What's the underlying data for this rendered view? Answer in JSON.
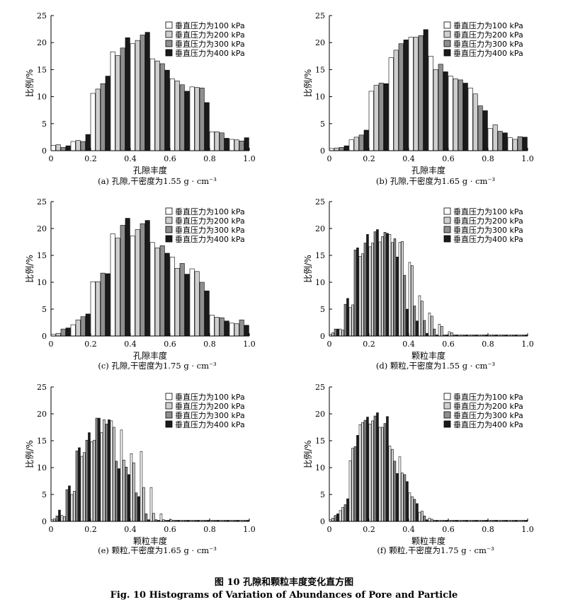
{
  "figure": {
    "title_zh": "图 10   孔隙和颗粒丰度变化直方图",
    "title_en": "Fig. 10   Histograms of Variation of Abundances of Pore and Particle"
  },
  "styles": {
    "series_colors": [
      "#ffffff",
      "#cfcfcf",
      "#8f8f8f",
      "#1a1a1a"
    ]
  },
  "chart_data": [
    {
      "type": "bar",
      "title": "",
      "caption": "(a)   孔隙,干密度为1.55 g · cm⁻³",
      "xlabel": "孔隙丰度",
      "ylabel": "比例/%",
      "xlim": [
        0,
        1
      ],
      "ylim": [
        0,
        25
      ],
      "xticks": [
        "0",
        "0.2",
        "0.4",
        "0.6",
        "0.8",
        "1.0"
      ],
      "yticks": [
        "0",
        "5",
        "10",
        "15",
        "20",
        "25"
      ],
      "legend_position": "top-right",
      "categories": [
        0.05,
        0.15,
        0.25,
        0.35,
        0.45,
        0.55,
        0.65,
        0.75,
        0.85,
        0.95
      ],
      "series": [
        {
          "name": "垂直压力为100 kPa",
          "values": [
            1.0,
            1.7,
            10.6,
            18.3,
            19.8,
            17.0,
            13.3,
            11.8,
            3.5,
            2.1
          ]
        },
        {
          "name": "垂直压力为200 kPa",
          "values": [
            1.1,
            1.9,
            11.4,
            17.6,
            20.4,
            16.6,
            12.9,
            11.7,
            3.5,
            2.0
          ]
        },
        {
          "name": "垂直压力为300 kPa",
          "values": [
            0.6,
            1.7,
            12.4,
            19.0,
            21.4,
            16.1,
            12.2,
            11.6,
            3.3,
            1.8
          ]
        },
        {
          "name": "垂直压力为400 kPa",
          "values": [
            0.9,
            3.0,
            13.8,
            20.9,
            21.9,
            14.9,
            11.0,
            8.9,
            2.3,
            2.4
          ]
        }
      ]
    },
    {
      "type": "bar",
      "title": "",
      "caption": "(b)   孔隙,干密度为1.65 g · cm⁻³",
      "xlabel": "孔隙丰度",
      "ylabel": "比例/%",
      "xlim": [
        0,
        1
      ],
      "ylim": [
        0,
        25
      ],
      "xticks": [
        "0",
        "0.2",
        "0.4",
        "0.6",
        "0.8",
        "1.0"
      ],
      "yticks": [
        "0",
        "5",
        "10",
        "15",
        "20",
        "25"
      ],
      "legend_position": "top-right",
      "categories": [
        0.05,
        0.15,
        0.25,
        0.35,
        0.45,
        0.55,
        0.65,
        0.75,
        0.85,
        0.95
      ],
      "series": [
        {
          "name": "垂直压力为100 kPa",
          "values": [
            0.4,
            2.0,
            11.0,
            17.2,
            21.0,
            17.5,
            13.8,
            11.6,
            4.1,
            2.4
          ]
        },
        {
          "name": "垂直压力为200 kPa",
          "values": [
            0.5,
            2.5,
            12.1,
            18.6,
            21.0,
            15.0,
            13.3,
            10.5,
            4.8,
            2.1
          ]
        },
        {
          "name": "垂直压力为300 kPa",
          "values": [
            0.6,
            2.9,
            12.5,
            19.8,
            21.3,
            16.0,
            13.1,
            8.3,
            3.6,
            2.6
          ]
        },
        {
          "name": "垂直压力为400 kPa",
          "values": [
            0.9,
            3.8,
            12.4,
            20.5,
            22.4,
            14.6,
            12.5,
            7.4,
            3.3,
            2.5
          ]
        }
      ]
    },
    {
      "type": "bar",
      "title": "",
      "caption": "(c)   孔隙,干密度为1.75 g · cm⁻³",
      "xlabel": "孔隙丰度",
      "ylabel": "比例/%",
      "xlim": [
        0,
        1
      ],
      "ylim": [
        0,
        25
      ],
      "xticks": [
        "0",
        "0.2",
        "0.4",
        "0.6",
        "0.8",
        "1.0"
      ],
      "yticks": [
        "0",
        "5",
        "10",
        "15",
        "20",
        "25"
      ],
      "legend_position": "top-right",
      "categories": [
        0.05,
        0.15,
        0.25,
        0.35,
        0.45,
        0.55,
        0.65,
        0.75,
        0.85,
        0.95
      ],
      "series": [
        {
          "name": "垂直压力为100 kPa",
          "values": [
            0.3,
            2.1,
            10.1,
            19.0,
            18.6,
            17.4,
            14.7,
            12.5,
            3.9,
            2.4
          ]
        },
        {
          "name": "垂直压力为200 kPa",
          "values": [
            0.5,
            3.0,
            10.1,
            18.2,
            19.8,
            16.4,
            12.6,
            12.0,
            3.5,
            2.3
          ]
        },
        {
          "name": "垂直压力为300 kPa",
          "values": [
            1.3,
            3.6,
            11.7,
            20.6,
            20.9,
            16.8,
            13.5,
            10.0,
            3.4,
            3.0
          ]
        },
        {
          "name": "垂直压力为400 kPa",
          "values": [
            1.5,
            4.1,
            11.6,
            21.9,
            21.5,
            15.4,
            11.5,
            8.4,
            2.8,
            2.0
          ]
        }
      ]
    },
    {
      "type": "bar",
      "title": "",
      "caption": "(d)   颗粒,干密度为1.55 g · cm⁻³",
      "xlabel": "颗粒丰度",
      "ylabel": "比例/%",
      "xlim": [
        0,
        1
      ],
      "ylim": [
        0,
        25
      ],
      "xticks": [
        "0",
        "0.2",
        "0.4",
        "0.6",
        "0.8",
        "1.0"
      ],
      "yticks": [
        "0",
        "5",
        "10",
        "15",
        "20",
        "25"
      ],
      "legend_position": "top-right",
      "categories": [
        0.025,
        0.075,
        0.125,
        0.175,
        0.225,
        0.275,
        0.325,
        0.375,
        0.425,
        0.475,
        0.525,
        0.575,
        0.625,
        0.675,
        0.725,
        0.775,
        0.825,
        0.875,
        0.925,
        0.975
      ],
      "series": [
        {
          "name": "垂直压力为100 kPa",
          "values": [
            0.3,
            1.3,
            5.3,
            14.8,
            16.6,
            17.5,
            18.9,
            17.4,
            13.7,
            7.5,
            4.3,
            2.2,
            0.8,
            0.2,
            0.2,
            0.2,
            0.2,
            0.2,
            0.2,
            0.2
          ]
        },
        {
          "name": "垂直压力为200 kPa",
          "values": [
            0.6,
            1.1,
            5.8,
            15.3,
            17.3,
            18.5,
            17.4,
            17.6,
            13.1,
            6.5,
            3.7,
            1.8,
            0.6,
            0.2,
            0.2,
            0.2,
            0.2,
            0.2,
            0.2,
            0.2
          ]
        },
        {
          "name": "垂直压力为300 kPa",
          "values": [
            1.3,
            5.9,
            16.0,
            17.3,
            19.4,
            19.3,
            18.1,
            11.3,
            5.6,
            2.9,
            1.3,
            0.2,
            0.2,
            0.2,
            0.2,
            0.2,
            0.2,
            0.2,
            0.2,
            0.2
          ]
        },
        {
          "name": "垂直压力为400 kPa",
          "values": [
            1.3,
            7.0,
            16.4,
            18.9,
            19.8,
            19.1,
            14.7,
            5.0,
            2.8,
            0.5,
            0.2,
            0.2,
            0.2,
            0.2,
            0.2,
            0.2,
            0.2,
            0.2,
            0.2,
            0.2
          ]
        }
      ]
    },
    {
      "type": "bar",
      "title": "",
      "caption": "(e)   颗粒,干密度为1.65 g · cm⁻³",
      "xlabel": "颗粒丰度",
      "ylabel": "比例/%",
      "xlim": [
        0,
        1
      ],
      "ylim": [
        0,
        25
      ],
      "xticks": [
        "0",
        "0.2",
        "0.4",
        "0.6",
        "0.8",
        "1.0"
      ],
      "yticks": [
        "0",
        "5",
        "10",
        "15",
        "20",
        "25"
      ],
      "legend_position": "top-right",
      "categories": [
        0.025,
        0.075,
        0.125,
        0.175,
        0.225,
        0.275,
        0.325,
        0.375,
        0.425,
        0.475,
        0.525,
        0.575,
        0.625,
        0.675,
        0.725,
        0.775,
        0.825,
        0.875,
        0.925,
        0.975
      ],
      "series": [
        {
          "name": "垂直压力为100 kPa",
          "values": [
            0.3,
            1.1,
            5.0,
            12.1,
            14.8,
            16.5,
            18.7,
            17.0,
            12.6,
            13.0,
            6.3,
            1.4,
            0.3,
            0.2,
            0.2,
            0.2,
            0.2,
            0.2,
            0.2,
            0.2
          ]
        },
        {
          "name": "垂直压力为200 kPa",
          "values": [
            0.5,
            0.9,
            5.6,
            12.8,
            15.1,
            18.9,
            17.5,
            11.4,
            10.9,
            6.3,
            1.5,
            0.3,
            0.2,
            0.2,
            0.2,
            0.2,
            0.2,
            0.2,
            0.2,
            0.2
          ]
        },
        {
          "name": "垂直压力为300 kPa",
          "values": [
            1.0,
            5.9,
            13.1,
            15.1,
            19.2,
            18.1,
            11.2,
            10.1,
            5.3,
            1.4,
            0.3,
            0.2,
            0.2,
            0.2,
            0.2,
            0.2,
            0.2,
            0.2,
            0.2,
            0.2
          ]
        },
        {
          "name": "垂直压力为400 kPa",
          "values": [
            2.1,
            6.6,
            13.7,
            16.5,
            19.2,
            18.9,
            9.8,
            8.7,
            4.6,
            0.3,
            0.2,
            0.2,
            0.2,
            0.2,
            0.2,
            0.2,
            0.2,
            0.2,
            0.2,
            0.2
          ]
        }
      ]
    },
    {
      "type": "bar",
      "title": "",
      "caption": "(f)   颗粒,干密度为1.75 g · cm⁻³",
      "xlabel": "颗粒丰度",
      "ylabel": "比例/%",
      "xlim": [
        0,
        1
      ],
      "ylim": [
        0,
        25
      ],
      "xticks": [
        "0",
        "0.2",
        "0.4",
        "0.6",
        "0.8",
        "1.0"
      ],
      "yticks": [
        "0",
        "5",
        "10",
        "15",
        "20",
        "25"
      ],
      "legend_position": "top-right",
      "categories": [
        0.025,
        0.075,
        0.125,
        0.175,
        0.225,
        0.275,
        0.325,
        0.375,
        0.425,
        0.475,
        0.525,
        0.575,
        0.625,
        0.675,
        0.725,
        0.775,
        0.825,
        0.875,
        0.925,
        0.975
      ],
      "series": [
        {
          "name": "垂直压力为100 kPa",
          "values": [
            0.3,
            2.0,
            11.3,
            18.0,
            18.1,
            17.5,
            14.0,
            12.0,
            5.3,
            1.7,
            0.6,
            0.2,
            0.2,
            0.2,
            0.2,
            0.2,
            0.2,
            0.2,
            0.2,
            0.2
          ]
        },
        {
          "name": "垂直压力为200 kPa",
          "values": [
            0.6,
            2.6,
            13.6,
            18.4,
            18.7,
            17.5,
            13.4,
            9.0,
            4.6,
            1.9,
            0.4,
            0.2,
            0.2,
            0.2,
            0.2,
            0.2,
            0.2,
            0.2,
            0.2,
            0.2
          ]
        },
        {
          "name": "垂直压力为300 kPa",
          "values": [
            1.1,
            3.1,
            13.9,
            18.8,
            19.6,
            18.2,
            11.2,
            8.7,
            4.1,
            1.0,
            0.2,
            0.2,
            0.2,
            0.2,
            0.2,
            0.2,
            0.2,
            0.2,
            0.2,
            0.2
          ]
        },
        {
          "name": "垂直压力为400 kPa",
          "values": [
            1.4,
            4.2,
            16.0,
            19.4,
            20.2,
            19.5,
            8.9,
            7.4,
            3.3,
            0.3,
            0.2,
            0.2,
            0.2,
            0.2,
            0.2,
            0.2,
            0.2,
            0.2,
            0.2,
            0.2
          ]
        }
      ]
    }
  ]
}
